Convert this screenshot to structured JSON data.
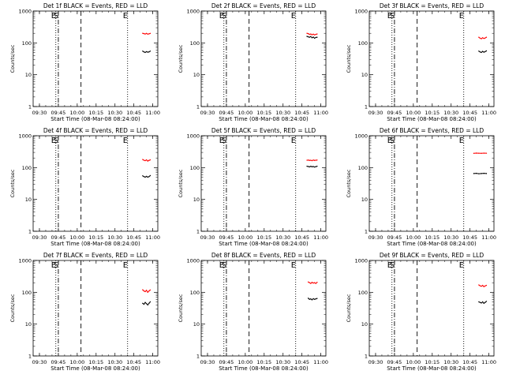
{
  "figure": {
    "background": "#ffffff",
    "axis_color": "#000000",
    "event_color": "#000000",
    "lld_color": "#ff0000"
  },
  "chart_data": [
    {
      "type": "line",
      "title": "Det 1f BLACK = Events, RED = LLD",
      "xlabel": "Start Time (08-Mar-08 08:24:00)",
      "ylabel": "Counts/sec",
      "ylog": true,
      "ylim": [
        1,
        1000
      ],
      "yticks": [
        "1",
        "10",
        "100",
        "1000"
      ],
      "xlim": [
        "09:25",
        "11:04"
      ],
      "xticks": [
        "09:30",
        "09:45",
        "10:00",
        "10:15",
        "10:30",
        "10:45",
        "11:00"
      ],
      "markers": [
        {
          "time": "09:43",
          "style": "dotted",
          "label": "E"
        },
        {
          "time": "09:45",
          "style": "dashdot",
          "label": "S"
        },
        {
          "time": "10:03",
          "style": "dashed",
          "label": ""
        },
        {
          "time": "10:40",
          "style": "dotted",
          "label": "E"
        }
      ],
      "series": [
        {
          "name": "LLD",
          "color": "#ff0000",
          "x": [
            "10:52",
            "10:53",
            "10:54",
            "10:55",
            "10:56",
            "10:57",
            "10:58"
          ],
          "y": [
            200,
            195,
            190,
            198,
            188,
            192,
            198
          ]
        },
        {
          "name": "Events",
          "color": "#000000",
          "x": [
            "10:52",
            "10:53",
            "10:54",
            "10:55",
            "10:56",
            "10:57",
            "10:58"
          ],
          "y": [
            55,
            52,
            50,
            53,
            51,
            52,
            55
          ]
        }
      ]
    },
    {
      "type": "line",
      "title": "Det 2f BLACK = Events, RED = LLD",
      "xlabel": "Start Time (08-Mar-08 08:24:00)",
      "ylabel": "Counts/sec",
      "ylog": true,
      "ylim": [
        1,
        1000
      ],
      "yticks": [
        "1",
        "10",
        "100",
        "1000"
      ],
      "xlim": [
        "09:25",
        "11:04"
      ],
      "xticks": [
        "09:30",
        "09:45",
        "10:00",
        "10:15",
        "10:30",
        "10:45",
        "11:00"
      ],
      "markers": [
        {
          "time": "09:43",
          "style": "dotted",
          "label": "E"
        },
        {
          "time": "09:45",
          "style": "dashdot",
          "label": "S"
        },
        {
          "time": "10:03",
          "style": "dashed",
          "label": ""
        },
        {
          "time": "10:40",
          "style": "dotted",
          "label": "E"
        }
      ],
      "series": [
        {
          "name": "LLD",
          "color": "#ff0000",
          "x": [
            "10:49",
            "10:50",
            "10:51",
            "10:52",
            "10:53",
            "10:54",
            "10:55",
            "10:56",
            "10:57"
          ],
          "y": [
            200,
            195,
            185,
            190,
            180,
            188,
            178,
            185,
            190
          ]
        },
        {
          "name": "Events",
          "color": "#000000",
          "x": [
            "10:49",
            "10:50",
            "10:51",
            "10:52",
            "10:53",
            "10:54",
            "10:55",
            "10:56",
            "10:57"
          ],
          "y": [
            160,
            155,
            150,
            158,
            145,
            152,
            140,
            148,
            150
          ]
        }
      ]
    },
    {
      "type": "line",
      "title": "Det 3f BLACK = Events, RED = LLD",
      "xlabel": "Start Time (08-Mar-08 08:24:00)",
      "ylabel": "Counts/sec",
      "ylog": true,
      "ylim": [
        1,
        1000
      ],
      "yticks": [
        "1",
        "10",
        "100",
        "1000"
      ],
      "xlim": [
        "09:25",
        "11:04"
      ],
      "xticks": [
        "09:30",
        "09:45",
        "10:00",
        "10:15",
        "10:30",
        "10:45",
        "11:00"
      ],
      "markers": [
        {
          "time": "09:43",
          "style": "dotted",
          "label": "E"
        },
        {
          "time": "09:45",
          "style": "dashdot",
          "label": "S"
        },
        {
          "time": "10:03",
          "style": "dashed",
          "label": ""
        },
        {
          "time": "10:40",
          "style": "dotted",
          "label": "E"
        }
      ],
      "series": [
        {
          "name": "LLD",
          "color": "#ff0000",
          "x": [
            "10:52",
            "10:53",
            "10:54",
            "10:55",
            "10:56",
            "10:57",
            "10:58"
          ],
          "y": [
            150,
            140,
            135,
            145,
            138,
            142,
            150
          ]
        },
        {
          "name": "Events",
          "color": "#000000",
          "x": [
            "10:52",
            "10:53",
            "10:54",
            "10:55",
            "10:56",
            "10:57",
            "10:58"
          ],
          "y": [
            55,
            52,
            50,
            54,
            51,
            53,
            56
          ]
        }
      ]
    },
    {
      "type": "line",
      "title": "Det 4f BLACK = Events, RED = LLD",
      "xlabel": "Start Time (08-Mar-08 08:24:00)",
      "ylabel": "Counts/sec",
      "ylog": true,
      "ylim": [
        1,
        1000
      ],
      "yticks": [
        "1",
        "10",
        "100",
        "1000"
      ],
      "xlim": [
        "09:25",
        "11:04"
      ],
      "xticks": [
        "09:30",
        "09:45",
        "10:00",
        "10:15",
        "10:30",
        "10:45",
        "11:00"
      ],
      "markers": [
        {
          "time": "09:43",
          "style": "dotted",
          "label": "E"
        },
        {
          "time": "09:45",
          "style": "dashdot",
          "label": "S"
        },
        {
          "time": "10:03",
          "style": "dashed",
          "label": ""
        },
        {
          "time": "10:40",
          "style": "dotted",
          "label": "E"
        }
      ],
      "series": [
        {
          "name": "LLD",
          "color": "#ff0000",
          "x": [
            "10:52",
            "10:53",
            "10:54",
            "10:55",
            "10:56",
            "10:57",
            "10:58"
          ],
          "y": [
            180,
            170,
            165,
            175,
            160,
            168,
            175
          ]
        },
        {
          "name": "Events",
          "color": "#000000",
          "x": [
            "10:52",
            "10:53",
            "10:54",
            "10:55",
            "10:56",
            "10:57",
            "10:58"
          ],
          "y": [
            55,
            52,
            50,
            53,
            50,
            52,
            56
          ]
        }
      ]
    },
    {
      "type": "line",
      "title": "Det 5f BLACK = Events, RED = LLD",
      "xlabel": "Start Time (08-Mar-08 08:24:00)",
      "ylabel": "Counts/sec",
      "ylog": true,
      "ylim": [
        1,
        1000
      ],
      "yticks": [
        "1",
        "10",
        "100",
        "1000"
      ],
      "xlim": [
        "09:25",
        "11:04"
      ],
      "xticks": [
        "09:30",
        "09:45",
        "10:00",
        "10:15",
        "10:30",
        "10:45",
        "11:00"
      ],
      "markers": [
        {
          "time": "09:43",
          "style": "dotted",
          "label": "E"
        },
        {
          "time": "09:45",
          "style": "dashdot",
          "label": "S"
        },
        {
          "time": "10:03",
          "style": "dashed",
          "label": ""
        },
        {
          "time": "10:40",
          "style": "dotted",
          "label": "E"
        }
      ],
      "series": [
        {
          "name": "LLD",
          "color": "#ff0000",
          "x": [
            "10:49",
            "10:50",
            "10:51",
            "10:52",
            "10:53",
            "10:54",
            "10:55",
            "10:56",
            "10:57"
          ],
          "y": [
            170,
            172,
            168,
            170,
            165,
            172,
            168,
            170,
            172
          ]
        },
        {
          "name": "Events",
          "color": "#000000",
          "x": [
            "10:49",
            "10:50",
            "10:51",
            "10:52",
            "10:53",
            "10:54",
            "10:55",
            "10:56",
            "10:57"
          ],
          "y": [
            110,
            108,
            105,
            110,
            106,
            108,
            104,
            107,
            110
          ]
        }
      ]
    },
    {
      "type": "line",
      "title": "Det 6f BLACK = Events, RED = LLD",
      "xlabel": "Start Time (08-Mar-08 08:24:00)",
      "ylabel": "Counts/sec",
      "ylog": true,
      "ylim": [
        1,
        1000
      ],
      "yticks": [
        "1",
        "10",
        "100",
        "1000"
      ],
      "xlim": [
        "09:25",
        "11:04"
      ],
      "xticks": [
        "09:30",
        "09:45",
        "10:00",
        "10:15",
        "10:30",
        "10:45",
        "11:00"
      ],
      "markers": [
        {
          "time": "09:43",
          "style": "dotted",
          "label": "E"
        },
        {
          "time": "09:45",
          "style": "dashdot",
          "label": "S"
        },
        {
          "time": "10:03",
          "style": "dashed",
          "label": ""
        },
        {
          "time": "10:40",
          "style": "dotted",
          "label": "E"
        }
      ],
      "series": [
        {
          "name": "LLD",
          "color": "#ff0000",
          "x": [
            "10:48",
            "10:50",
            "10:52",
            "10:54",
            "10:56",
            "10:58"
          ],
          "y": [
            280,
            285,
            282,
            280,
            284,
            282
          ]
        },
        {
          "name": "Events",
          "color": "#000000",
          "x": [
            "10:48",
            "10:50",
            "10:52",
            "10:54",
            "10:56",
            "10:58"
          ],
          "y": [
            65,
            66,
            64,
            65,
            66,
            65
          ]
        }
      ]
    },
    {
      "type": "line",
      "title": "Det 7f BLACK = Events, RED = LLD",
      "xlabel": "Start Time (08-Mar-08 08:24:00)",
      "ylabel": "Counts/sec",
      "ylog": true,
      "ylim": [
        1,
        1000
      ],
      "yticks": [
        "1",
        "10",
        "100",
        "1000"
      ],
      "xlim": [
        "09:25",
        "11:04"
      ],
      "xticks": [
        "09:30",
        "09:45",
        "10:00",
        "10:15",
        "10:30",
        "10:45",
        "11:00"
      ],
      "markers": [
        {
          "time": "09:43",
          "style": "dotted",
          "label": "E"
        },
        {
          "time": "09:45",
          "style": "dashdot",
          "label": "S"
        },
        {
          "time": "10:03",
          "style": "dashed",
          "label": ""
        },
        {
          "time": "10:40",
          "style": "dotted",
          "label": "E"
        }
      ],
      "series": [
        {
          "name": "LLD",
          "color": "#ff0000",
          "x": [
            "10:52",
            "10:53",
            "10:54",
            "10:55",
            "10:56",
            "10:57",
            "10:58"
          ],
          "y": [
            120,
            110,
            105,
            115,
            100,
            110,
            118
          ]
        },
        {
          "name": "Events",
          "color": "#000000",
          "x": [
            "10:52",
            "10:53",
            "10:54",
            "10:55",
            "10:56",
            "10:57",
            "10:58"
          ],
          "y": [
            45,
            42,
            48,
            44,
            40,
            45,
            50
          ]
        }
      ]
    },
    {
      "type": "line",
      "title": "Det 8f BLACK = Events, RED = LLD",
      "xlabel": "Start Time (08-Mar-08 08:24:00)",
      "ylabel": "Counts/sec",
      "ylog": true,
      "ylim": [
        1,
        1000
      ],
      "yticks": [
        "1",
        "10",
        "100",
        "1000"
      ],
      "xlim": [
        "09:25",
        "11:04"
      ],
      "xticks": [
        "09:30",
        "09:45",
        "10:00",
        "10:15",
        "10:30",
        "10:45",
        "11:00"
      ],
      "markers": [
        {
          "time": "09:43",
          "style": "dotted",
          "label": "E"
        },
        {
          "time": "09:45",
          "style": "dashdot",
          "label": "S"
        },
        {
          "time": "10:03",
          "style": "dashed",
          "label": ""
        },
        {
          "time": "10:40",
          "style": "dotted",
          "label": "E"
        }
      ],
      "series": [
        {
          "name": "LLD",
          "color": "#ff0000",
          "x": [
            "10:50",
            "10:51",
            "10:52",
            "10:53",
            "10:54",
            "10:55",
            "10:56",
            "10:57"
          ],
          "y": [
            210,
            200,
            190,
            205,
            195,
            200,
            190,
            205
          ]
        },
        {
          "name": "Events",
          "color": "#000000",
          "x": [
            "10:50",
            "10:51",
            "10:52",
            "10:53",
            "10:54",
            "10:55",
            "10:56",
            "10:57"
          ],
          "y": [
            65,
            60,
            62,
            58,
            63,
            60,
            62,
            64
          ]
        }
      ]
    },
    {
      "type": "line",
      "title": "Det 9f BLACK = Events, RED = LLD",
      "xlabel": "Start Time (08-Mar-08 08:24:00)",
      "ylabel": "Counts/sec",
      "ylog": true,
      "ylim": [
        1,
        1000
      ],
      "yticks": [
        "1",
        "10",
        "100",
        "1000"
      ],
      "xlim": [
        "09:25",
        "11:04"
      ],
      "xticks": [
        "09:30",
        "09:45",
        "10:00",
        "10:15",
        "10:30",
        "10:45",
        "11:00"
      ],
      "markers": [
        {
          "time": "09:43",
          "style": "dotted",
          "label": "E"
        },
        {
          "time": "09:45",
          "style": "dashdot",
          "label": "S"
        },
        {
          "time": "10:03",
          "style": "dashed",
          "label": ""
        },
        {
          "time": "10:40",
          "style": "dotted",
          "label": "E"
        }
      ],
      "series": [
        {
          "name": "LLD",
          "color": "#ff0000",
          "x": [
            "10:52",
            "10:53",
            "10:54",
            "10:55",
            "10:56",
            "10:57",
            "10:58"
          ],
          "y": [
            170,
            160,
            155,
            165,
            150,
            158,
            165
          ]
        },
        {
          "name": "Events",
          "color": "#000000",
          "x": [
            "10:52",
            "10:53",
            "10:54",
            "10:55",
            "10:56",
            "10:57",
            "10:58"
          ],
          "y": [
            50,
            48,
            46,
            50,
            45,
            48,
            52
          ]
        }
      ]
    }
  ]
}
